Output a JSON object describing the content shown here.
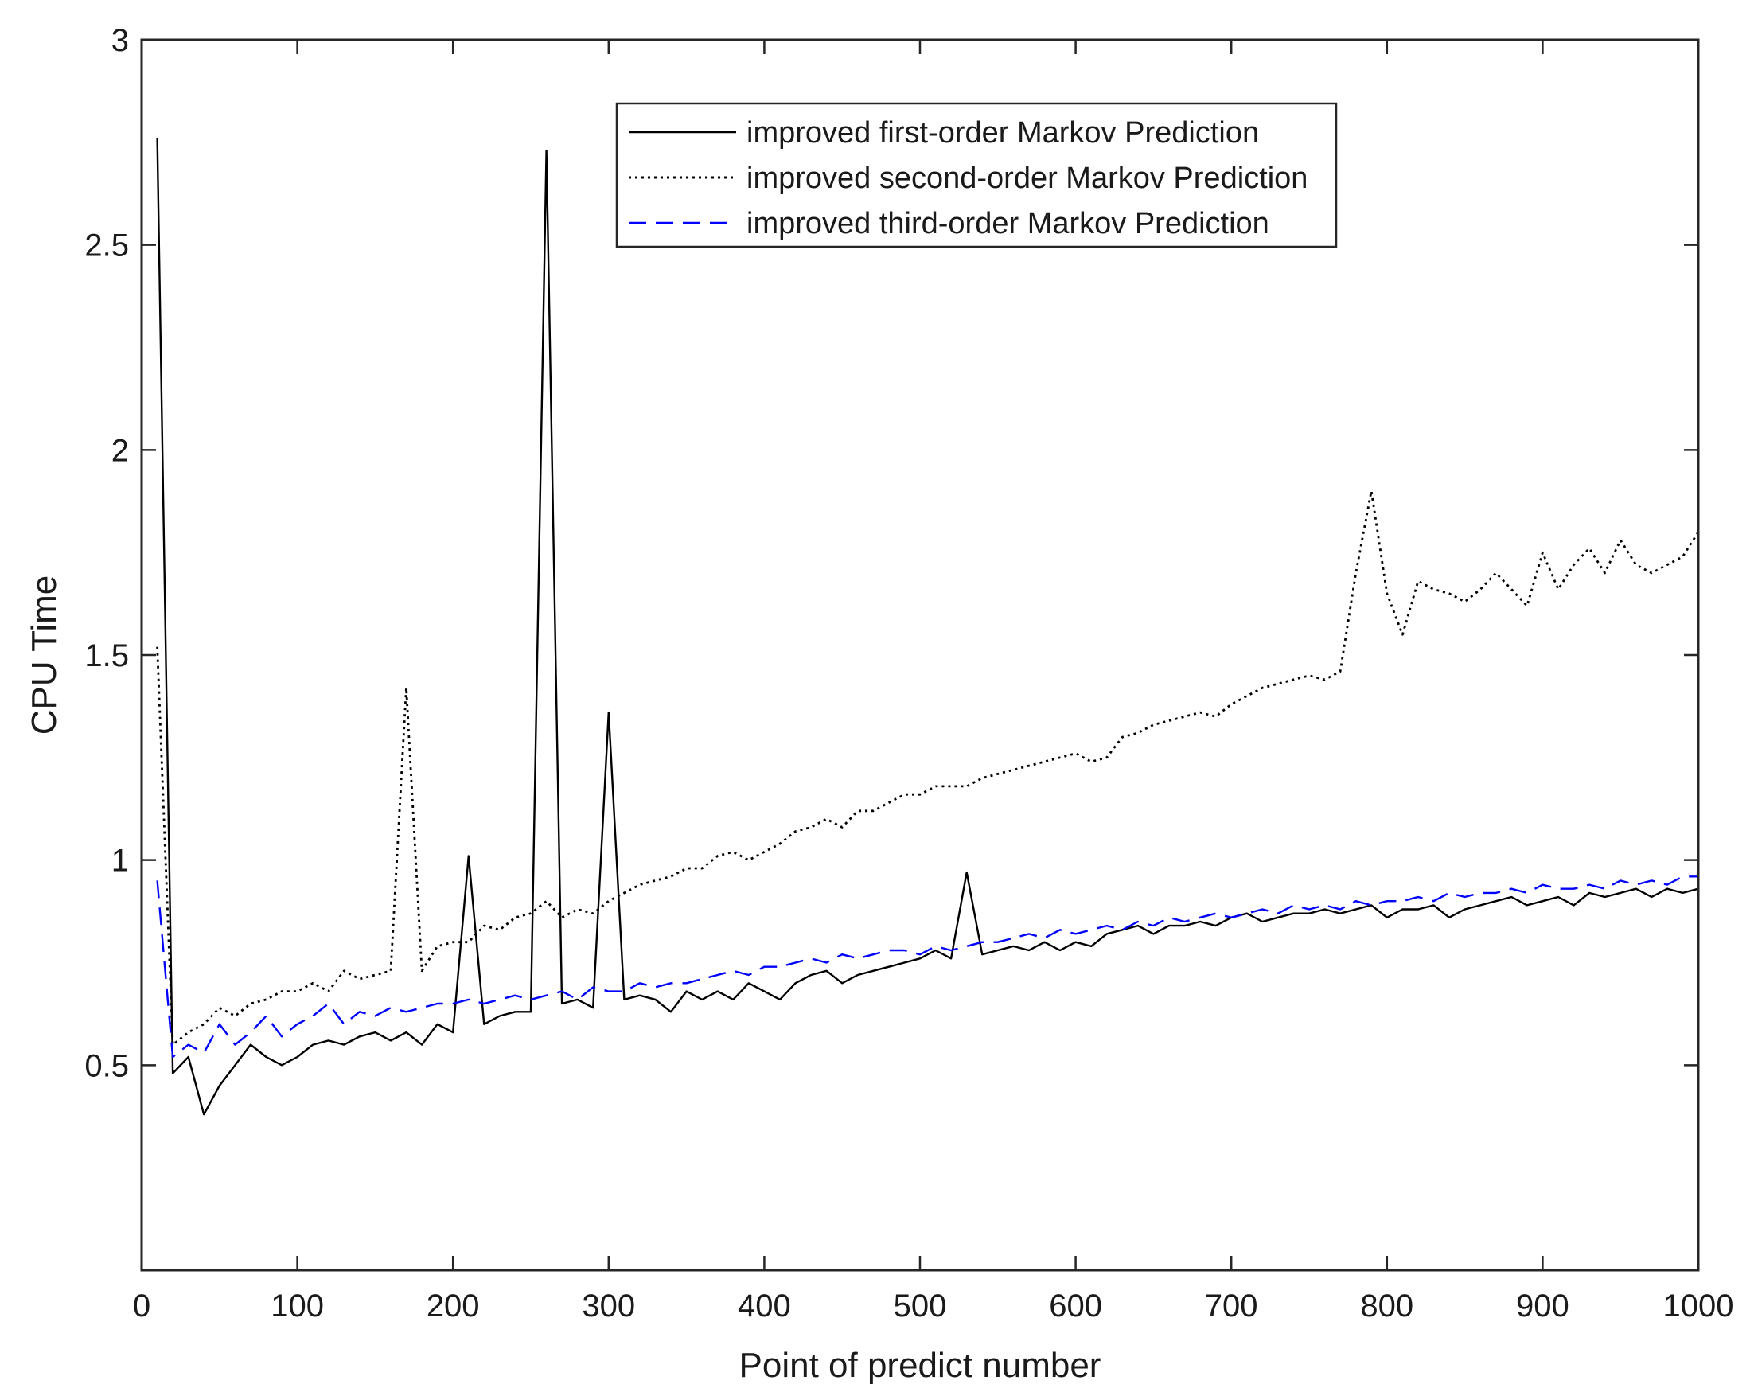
{
  "chart_data": {
    "type": "line",
    "title": "",
    "xlabel": "Point of predict number",
    "ylabel": "CPU Time",
    "xlim": [
      0,
      1000
    ],
    "ylim": [
      0,
      3
    ],
    "x_ticks": [
      0,
      100,
      200,
      300,
      400,
      500,
      600,
      700,
      800,
      900,
      1000
    ],
    "x_tick_labels": [
      "0",
      "100",
      "200",
      "300",
      "400",
      "500",
      "600",
      "700",
      "800",
      "900",
      "1000"
    ],
    "y_ticks": [
      0.5,
      1,
      1.5,
      2,
      2.5,
      3
    ],
    "y_tick_labels": [
      "0.5",
      "1",
      "1.5",
      "2",
      "2.5",
      "3"
    ],
    "grid": false,
    "legend_position": "top-center",
    "x": [
      10,
      20,
      30,
      40,
      50,
      60,
      70,
      80,
      90,
      100,
      110,
      120,
      130,
      140,
      150,
      160,
      170,
      180,
      190,
      200,
      210,
      220,
      230,
      240,
      250,
      260,
      270,
      280,
      290,
      300,
      310,
      320,
      330,
      340,
      350,
      360,
      370,
      380,
      390,
      400,
      410,
      420,
      430,
      440,
      450,
      460,
      470,
      480,
      490,
      500,
      510,
      520,
      530,
      540,
      550,
      560,
      570,
      580,
      590,
      600,
      610,
      620,
      630,
      640,
      650,
      660,
      670,
      680,
      690,
      700,
      710,
      720,
      730,
      740,
      750,
      760,
      770,
      780,
      790,
      800,
      810,
      820,
      830,
      840,
      850,
      860,
      870,
      880,
      890,
      900,
      910,
      920,
      930,
      940,
      950,
      960,
      970,
      980,
      990,
      1000
    ],
    "series": [
      {
        "name": "improved first-order Markov Prediction",
        "color": "#000000",
        "style": "solid",
        "values": [
          2.76,
          0.48,
          0.52,
          0.38,
          0.45,
          0.5,
          0.55,
          0.52,
          0.5,
          0.52,
          0.55,
          0.56,
          0.55,
          0.57,
          0.58,
          0.56,
          0.58,
          0.55,
          0.6,
          0.58,
          1.01,
          0.6,
          0.62,
          0.63,
          0.63,
          2.73,
          0.65,
          0.66,
          0.64,
          1.36,
          0.66,
          0.67,
          0.66,
          0.63,
          0.68,
          0.66,
          0.68,
          0.66,
          0.7,
          0.68,
          0.66,
          0.7,
          0.72,
          0.73,
          0.7,
          0.72,
          0.73,
          0.74,
          0.75,
          0.76,
          0.78,
          0.76,
          0.97,
          0.77,
          0.78,
          0.79,
          0.78,
          0.8,
          0.78,
          0.8,
          0.79,
          0.82,
          0.83,
          0.84,
          0.82,
          0.84,
          0.84,
          0.85,
          0.84,
          0.86,
          0.87,
          0.85,
          0.86,
          0.87,
          0.87,
          0.88,
          0.87,
          0.88,
          0.89,
          0.86,
          0.88,
          0.88,
          0.89,
          0.86,
          0.88,
          0.89,
          0.9,
          0.91,
          0.89,
          0.9,
          0.91,
          0.89,
          0.92,
          0.91,
          0.92,
          0.93,
          0.91,
          0.93,
          0.92,
          0.93
        ]
      },
      {
        "name": "improved second-order Markov Prediction",
        "color": "#000000",
        "style": "dotted",
        "values": [
          1.52,
          0.55,
          0.58,
          0.6,
          0.64,
          0.62,
          0.65,
          0.66,
          0.68,
          0.68,
          0.7,
          0.68,
          0.73,
          0.71,
          0.72,
          0.73,
          1.42,
          0.73,
          0.79,
          0.8,
          0.8,
          0.84,
          0.83,
          0.86,
          0.87,
          0.9,
          0.86,
          0.88,
          0.87,
          0.9,
          0.92,
          0.94,
          0.95,
          0.96,
          0.98,
          0.98,
          1.01,
          1.02,
          1.0,
          1.02,
          1.04,
          1.07,
          1.08,
          1.1,
          1.08,
          1.12,
          1.12,
          1.14,
          1.16,
          1.16,
          1.18,
          1.18,
          1.18,
          1.2,
          1.21,
          1.22,
          1.23,
          1.24,
          1.25,
          1.26,
          1.24,
          1.25,
          1.3,
          1.31,
          1.33,
          1.34,
          1.35,
          1.36,
          1.35,
          1.38,
          1.4,
          1.42,
          1.43,
          1.44,
          1.45,
          1.44,
          1.46,
          1.7,
          1.9,
          1.65,
          1.55,
          1.68,
          1.66,
          1.65,
          1.63,
          1.66,
          1.7,
          1.66,
          1.62,
          1.75,
          1.66,
          1.72,
          1.76,
          1.7,
          1.78,
          1.72,
          1.7,
          1.72,
          1.74,
          1.8
        ]
      },
      {
        "name": "improved third-order Markov Prediction",
        "color": "#0000ff",
        "style": "dashed",
        "values": [
          0.95,
          0.52,
          0.55,
          0.53,
          0.6,
          0.55,
          0.58,
          0.62,
          0.57,
          0.6,
          0.62,
          0.65,
          0.6,
          0.63,
          0.62,
          0.64,
          0.63,
          0.64,
          0.65,
          0.65,
          0.66,
          0.65,
          0.66,
          0.67,
          0.66,
          0.67,
          0.68,
          0.66,
          0.69,
          0.68,
          0.68,
          0.7,
          0.69,
          0.7,
          0.7,
          0.71,
          0.72,
          0.73,
          0.72,
          0.74,
          0.74,
          0.75,
          0.76,
          0.75,
          0.77,
          0.76,
          0.77,
          0.78,
          0.78,
          0.77,
          0.79,
          0.78,
          0.79,
          0.8,
          0.8,
          0.81,
          0.82,
          0.81,
          0.83,
          0.82,
          0.83,
          0.84,
          0.83,
          0.85,
          0.84,
          0.86,
          0.85,
          0.86,
          0.87,
          0.86,
          0.87,
          0.88,
          0.87,
          0.89,
          0.88,
          0.89,
          0.88,
          0.9,
          0.89,
          0.9,
          0.9,
          0.91,
          0.9,
          0.92,
          0.91,
          0.92,
          0.92,
          0.93,
          0.92,
          0.94,
          0.93,
          0.93,
          0.94,
          0.93,
          0.95,
          0.94,
          0.95,
          0.94,
          0.96,
          0.96
        ]
      }
    ]
  }
}
